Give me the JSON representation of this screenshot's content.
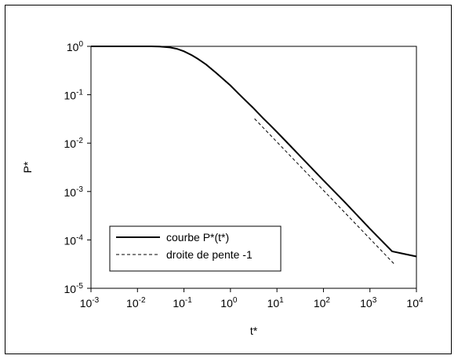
{
  "chart_data": {
    "type": "line",
    "xlabel": "t*",
    "ylabel": "P*",
    "x_scale": "log",
    "y_scale": "log",
    "xlim": [
      0.001,
      10000
    ],
    "ylim": [
      1e-05,
      1
    ],
    "x_ticks": [
      {
        "base": "10",
        "exp": "-3",
        "value": 0.001
      },
      {
        "base": "10",
        "exp": "-2",
        "value": 0.01
      },
      {
        "base": "10",
        "exp": "-1",
        "value": 0.1
      },
      {
        "base": "10",
        "exp": "0",
        "value": 1
      },
      {
        "base": "10",
        "exp": "1",
        "value": 10
      },
      {
        "base": "10",
        "exp": "2",
        "value": 100
      },
      {
        "base": "10",
        "exp": "3",
        "value": 1000
      },
      {
        "base": "10",
        "exp": "4",
        "value": 10000
      }
    ],
    "y_ticks": [
      {
        "base": "10",
        "exp": "0",
        "value": 1
      },
      {
        "base": "10",
        "exp": "-1",
        "value": 0.1
      },
      {
        "base": "10",
        "exp": "-2",
        "value": 0.01
      },
      {
        "base": "10",
        "exp": "-3",
        "value": 0.001
      },
      {
        "base": "10",
        "exp": "-4",
        "value": 0.0001
      },
      {
        "base": "10",
        "exp": "-5",
        "value": 1e-05
      }
    ],
    "series": [
      {
        "name": "courbe P*(t*)",
        "style": "solid",
        "color": "#000000",
        "x": [
          0.001,
          0.003,
          0.01,
          0.02,
          0.03,
          0.05,
          0.07,
          0.1,
          0.15,
          0.2,
          0.3,
          0.5,
          0.7,
          1,
          1.5,
          2,
          3,
          5,
          7,
          10,
          20,
          50,
          100,
          300,
          1000,
          3000,
          10000
        ],
        "y": [
          1,
          1,
          1,
          1,
          0.99,
          0.95,
          0.89,
          0.79,
          0.65,
          0.55,
          0.42,
          0.28,
          0.21,
          0.155,
          0.105,
          0.08,
          0.055,
          0.033,
          0.024,
          0.017,
          0.0085,
          0.0034,
          0.0017,
          0.00058,
          0.00017,
          5.8e-05,
          4.55e-05
        ]
      },
      {
        "name": "droite de pente -1",
        "style": "dashed",
        "color": "#000000",
        "x": [
          3.3,
          3300
        ],
        "y": [
          0.032,
          3.2e-05
        ]
      }
    ],
    "legend": {
      "position": "bottom-left",
      "entries": [
        "courbe P*(t*)",
        "droite de pente -1"
      ]
    },
    "grid": false
  }
}
